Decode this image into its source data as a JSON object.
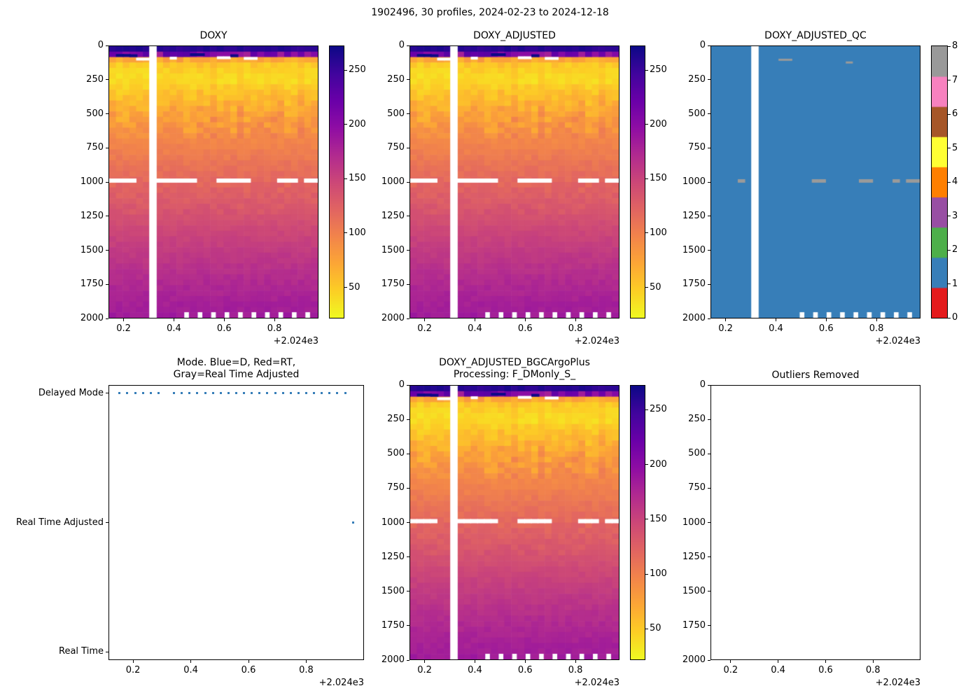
{
  "figure": {
    "suptitle": "1902496, 30 profiles, 2024-02-23 to 2024-12-18",
    "offset_text": "+2.024e3",
    "background": "#ffffff"
  },
  "palette": {
    "heat_dark": "#0d0887",
    "heat_bright": "#f0f921",
    "qc_fill": "#377eb8",
    "dot_blue": "#377eb8",
    "qc_gray": "#9a9a9a",
    "missing_white": "#ffffff",
    "spine": "#000000",
    "plasma_stops": [
      "#0d0887",
      "#41049d",
      "#6a00a8",
      "#8f0da4",
      "#b12a90",
      "#cc4778",
      "#e16462",
      "#f2844b",
      "#fca636",
      "#fcce25",
      "#f0f921"
    ],
    "qc_colors": [
      "#e41a1c",
      "#377eb8",
      "#4daf4a",
      "#984ea3",
      "#ff7f00",
      "#ffff33",
      "#a65628",
      "#f781bf",
      "#999999"
    ]
  },
  "chart_data": [
    {
      "id": "doxy",
      "type": "heatmap",
      "title": "DOXY",
      "x": {
        "range": [
          2024.14,
          2024.975
        ],
        "ticks": [
          0.2,
          0.4,
          0.6,
          0.8
        ],
        "offset": "+2.024e3"
      },
      "y": {
        "range": [
          0,
          2000
        ],
        "ticks": [
          0,
          250,
          500,
          750,
          1000,
          1250,
          1500,
          1750,
          2000
        ],
        "inverted": true
      },
      "colorbar": {
        "ticks": [
          50,
          100,
          150,
          200,
          250
        ],
        "range": [
          22,
          272
        ],
        "cmap": "plasma_r"
      },
      "n_profiles": 30,
      "n_time_cols": 31,
      "missing_time_col": 6,
      "depth_profile_anchors": [
        [
          0,
          265
        ],
        [
          40,
          255
        ],
        [
          60,
          205
        ],
        [
          80,
          125
        ],
        [
          100,
          72
        ],
        [
          150,
          46
        ],
        [
          250,
          40
        ],
        [
          350,
          56
        ],
        [
          500,
          76
        ],
        [
          700,
          96
        ],
        [
          900,
          112
        ],
        [
          1100,
          126
        ],
        [
          1400,
          150
        ],
        [
          1700,
          170
        ],
        [
          2000,
          186
        ]
      ],
      "missing_1000m_cols": [
        0,
        1,
        2,
        3,
        7,
        8,
        9,
        10,
        11,
        12,
        16,
        17,
        18,
        19,
        20,
        25,
        26,
        27,
        29,
        30
      ],
      "missing_bottom_cols": [
        11,
        13,
        15,
        17,
        19,
        21,
        23,
        25,
        27,
        29
      ],
      "surface_gap_dashes": [
        {
          "col": 4,
          "p": 95
        },
        {
          "col": 5,
          "p": 95
        },
        {
          "col": 9,
          "p": 88
        },
        {
          "col": 16,
          "p": 85
        },
        {
          "col": 17,
          "p": 85
        },
        {
          "col": 20,
          "p": 90
        },
        {
          "col": 21,
          "p": 90
        }
      ],
      "dark_surface_dashes": [
        {
          "col": 1,
          "p": 68
        },
        {
          "col": 2,
          "p": 68
        },
        {
          "col": 3,
          "p": 70
        },
        {
          "col": 12,
          "p": 62
        },
        {
          "col": 13,
          "p": 62
        },
        {
          "col": 18,
          "p": 70
        }
      ]
    },
    {
      "id": "doxy_adjusted",
      "type": "heatmap",
      "title": "DOXY_ADJUSTED",
      "x": {
        "range": [
          2024.14,
          2024.975
        ],
        "ticks": [
          0.2,
          0.4,
          0.6,
          0.8
        ],
        "offset": "+2.024e3"
      },
      "y": {
        "range": [
          0,
          2000
        ],
        "ticks": [
          0,
          250,
          500,
          750,
          1000,
          1250,
          1500,
          1750,
          2000
        ],
        "inverted": true
      },
      "colorbar": {
        "ticks": [
          50,
          100,
          150,
          200,
          250
        ],
        "range": [
          22,
          272
        ],
        "cmap": "plasma_r"
      },
      "n_profiles": 30,
      "n_time_cols": 31,
      "missing_time_col": 6,
      "depth_profile_anchors": [
        [
          0,
          265
        ],
        [
          40,
          255
        ],
        [
          60,
          205
        ],
        [
          80,
          125
        ],
        [
          100,
          72
        ],
        [
          150,
          46
        ],
        [
          250,
          40
        ],
        [
          350,
          56
        ],
        [
          500,
          76
        ],
        [
          700,
          96
        ],
        [
          900,
          112
        ],
        [
          1100,
          126
        ],
        [
          1400,
          150
        ],
        [
          1700,
          170
        ],
        [
          2000,
          186
        ]
      ],
      "missing_1000m_cols": [
        0,
        1,
        2,
        3,
        7,
        8,
        9,
        10,
        11,
        12,
        16,
        17,
        18,
        19,
        20,
        25,
        26,
        27,
        29,
        30
      ],
      "missing_bottom_cols": [
        11,
        13,
        15,
        17,
        19,
        21,
        23,
        25,
        27,
        29
      ],
      "surface_gap_dashes": [
        {
          "col": 4,
          "p": 95
        },
        {
          "col": 5,
          "p": 95
        },
        {
          "col": 9,
          "p": 88
        },
        {
          "col": 16,
          "p": 85
        },
        {
          "col": 17,
          "p": 85
        },
        {
          "col": 20,
          "p": 90
        },
        {
          "col": 21,
          "p": 90
        }
      ],
      "dark_surface_dashes": [
        {
          "col": 1,
          "p": 68
        },
        {
          "col": 2,
          "p": 68
        },
        {
          "col": 3,
          "p": 70
        },
        {
          "col": 12,
          "p": 62
        },
        {
          "col": 13,
          "p": 62
        },
        {
          "col": 18,
          "p": 70
        }
      ]
    },
    {
      "id": "doxy_adjusted_qc",
      "type": "qc_heatmap",
      "title": "DOXY_ADJUSTED_QC",
      "x": {
        "range": [
          2024.14,
          2024.975
        ],
        "ticks": [
          0.2,
          0.4,
          0.6,
          0.8
        ],
        "offset": "+2.024e3"
      },
      "y": {
        "range": [
          0,
          2000
        ],
        "ticks": [
          0,
          250,
          500,
          750,
          1000,
          1250,
          1500,
          1750,
          2000
        ],
        "inverted": true
      },
      "colorbar": {
        "labels": [
          0,
          1,
          2,
          3,
          4,
          5,
          6,
          7,
          8
        ],
        "range": [
          0,
          8
        ]
      },
      "dominant_qc_value": 1,
      "n_time_cols": 31,
      "missing_time_col": 6,
      "gray_1000m_cols": [
        4,
        15,
        16,
        22,
        23,
        27,
        29,
        30
      ],
      "gray_surface_dashes": [
        {
          "col": 10,
          "p": 100
        },
        {
          "col": 11,
          "p": 100
        },
        {
          "col": 20,
          "p": 120
        }
      ],
      "missing_bottom_cols": [
        13,
        15,
        17,
        19,
        21,
        23,
        25,
        27,
        29
      ]
    },
    {
      "id": "mode",
      "type": "category_scatter",
      "title_lines": [
        "Mode. Blue=D, Red=RT,",
        "Gray=Real Time Adjusted"
      ],
      "categories": [
        "Delayed Mode",
        "Real Time Adjusted",
        "Real Time"
      ],
      "x": {
        "range": [
          2024.115,
          2025.0
        ],
        "ticks": [
          0.2,
          0.4,
          0.6,
          0.8
        ],
        "offset": "+2.024e3"
      },
      "delayed_mode_cols": [
        0,
        1,
        2,
        3,
        4,
        5,
        7,
        8,
        9,
        10,
        11,
        12,
        13,
        14,
        15,
        16,
        17,
        18,
        19,
        20,
        21,
        22,
        23,
        24,
        25,
        26,
        27,
        28,
        29
      ],
      "real_time_adjusted_cols": [
        30
      ],
      "real_time_cols": []
    },
    {
      "id": "doxy_adjusted_bgcargoplus",
      "type": "heatmap",
      "title_lines": [
        "DOXY_ADJUSTED_BGCArgoPlus",
        "Processing: F_DMonly_S_"
      ],
      "x": {
        "range": [
          2024.14,
          2024.975
        ],
        "ticks": [
          0.2,
          0.4,
          0.6,
          0.8
        ],
        "offset": "+2.024e3"
      },
      "y": {
        "range": [
          0,
          2000
        ],
        "ticks": [
          0,
          250,
          500,
          750,
          1000,
          1250,
          1500,
          1750,
          2000
        ],
        "inverted": true
      },
      "colorbar": {
        "ticks": [
          50,
          100,
          150,
          200,
          250
        ],
        "range": [
          22,
          272
        ],
        "cmap": "plasma_r"
      },
      "n_profiles": 30,
      "n_time_cols": 31,
      "missing_time_col": 6,
      "depth_profile_anchors": [
        [
          0,
          265
        ],
        [
          40,
          255
        ],
        [
          60,
          205
        ],
        [
          80,
          125
        ],
        [
          100,
          72
        ],
        [
          150,
          46
        ],
        [
          250,
          40
        ],
        [
          350,
          56
        ],
        [
          500,
          76
        ],
        [
          700,
          96
        ],
        [
          900,
          112
        ],
        [
          1100,
          126
        ],
        [
          1400,
          150
        ],
        [
          1700,
          170
        ],
        [
          2000,
          186
        ]
      ],
      "missing_1000m_cols": [
        0,
        1,
        2,
        3,
        7,
        8,
        9,
        10,
        11,
        12,
        16,
        17,
        18,
        19,
        20,
        25,
        26,
        27,
        29,
        30
      ],
      "missing_bottom_cols": [
        11,
        13,
        15,
        17,
        19,
        21,
        23,
        25,
        27,
        29
      ],
      "surface_gap_dashes": [
        {
          "col": 4,
          "p": 95
        },
        {
          "col": 5,
          "p": 95
        },
        {
          "col": 9,
          "p": 88
        },
        {
          "col": 16,
          "p": 85
        },
        {
          "col": 17,
          "p": 85
        },
        {
          "col": 20,
          "p": 90
        },
        {
          "col": 21,
          "p": 90
        }
      ],
      "dark_surface_dashes": [
        {
          "col": 1,
          "p": 68
        },
        {
          "col": 2,
          "p": 68
        },
        {
          "col": 3,
          "p": 70
        },
        {
          "col": 12,
          "p": 62
        },
        {
          "col": 13,
          "p": 62
        },
        {
          "col": 18,
          "p": 70
        }
      ]
    },
    {
      "id": "outliers",
      "type": "empty",
      "title": "Outliers Removed",
      "x": {
        "range": [
          2024.115,
          2025.0
        ],
        "ticks": [
          0.2,
          0.4,
          0.6,
          0.8
        ],
        "offset": "+2.024e3"
      },
      "y": {
        "range": [
          0,
          2000
        ],
        "ticks": [
          0,
          250,
          500,
          750,
          1000,
          1250,
          1500,
          1750,
          2000
        ],
        "inverted": true
      }
    }
  ]
}
